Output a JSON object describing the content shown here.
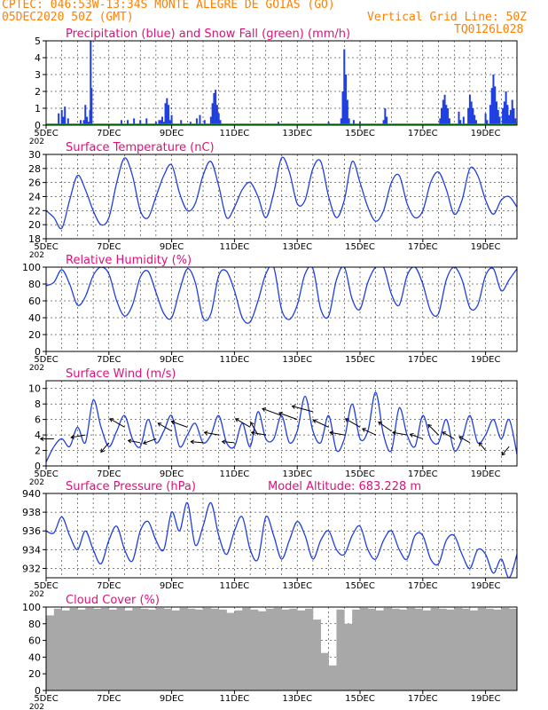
{
  "header": {
    "line1": "CPTEC:  046:53W-13:34S  MONTE ALEGRE DE GOIAS (GO)",
    "line2_left": "05DEC2020 50Z (GMT)",
    "line2_right": "Vertical Grid Line: 50Z",
    "line3_right": "TQ0126L028"
  },
  "colors": {
    "header": "#ff8000",
    "title": "#e0107a",
    "series": "#1f3fe0",
    "snow": "#00b000",
    "cloud": "#a8a8a8",
    "grid": "#000000"
  },
  "x_tick_labels": [
    "5DEC",
    "7DEC",
    "9DEC",
    "11DEC",
    "13DEC",
    "15DEC",
    "17DEC",
    "19DEC"
  ],
  "x_tick_sub": "202",
  "chart_data": [
    {
      "type": "bar",
      "title": "Precipitation (blue) and Snow Fall (green) (mm/h)",
      "ylim": [
        0,
        5
      ],
      "yticks": [
        "0",
        "1",
        "2",
        "3",
        "4",
        "5"
      ],
      "x_days": [
        5,
        20
      ],
      "series": [
        {
          "name": "Precipitation",
          "points": [
            [
              5.4,
              0.7
            ],
            [
              5.5,
              0.9
            ],
            [
              5.55,
              0.5
            ],
            [
              5.6,
              1.1
            ],
            [
              5.7,
              0.4
            ],
            [
              6.1,
              0.3
            ],
            [
              6.2,
              0.3
            ],
            [
              6.25,
              1.2
            ],
            [
              6.3,
              0.5
            ],
            [
              6.35,
              0.2
            ],
            [
              6.4,
              0.9
            ],
            [
              6.42,
              5
            ],
            [
              6.45,
              2.2
            ],
            [
              7.4,
              0.3
            ],
            [
              7.6,
              0.3
            ],
            [
              7.8,
              0.4
            ],
            [
              8.0,
              0.3
            ],
            [
              8.2,
              0.4
            ],
            [
              8.5,
              0.2
            ],
            [
              8.6,
              0.3
            ],
            [
              8.65,
              0.3
            ],
            [
              8.7,
              0.5
            ],
            [
              8.75,
              0.2
            ],
            [
              8.8,
              1.3
            ],
            [
              8.85,
              1.6
            ],
            [
              8.9,
              1.2
            ],
            [
              8.95,
              0.3
            ],
            [
              9.0,
              0.6
            ],
            [
              9.3,
              0.3
            ],
            [
              9.6,
              0.2
            ],
            [
              9.8,
              0.4
            ],
            [
              9.9,
              0.6
            ],
            [
              10.05,
              0.3
            ],
            [
              10.25,
              0.5
            ],
            [
              10.3,
              1.3
            ],
            [
              10.35,
              1.9
            ],
            [
              10.4,
              2.1
            ],
            [
              10.45,
              1.2
            ],
            [
              10.5,
              0.7
            ],
            [
              10.55,
              0.3
            ],
            [
              12.4,
              0.2
            ],
            [
              14.0,
              0.2
            ],
            [
              14.4,
              0.4
            ],
            [
              14.45,
              2.0
            ],
            [
              14.5,
              4.5
            ],
            [
              14.55,
              3.0
            ],
            [
              14.6,
              1.5
            ],
            [
              14.65,
              0.4
            ],
            [
              14.8,
              0.3
            ],
            [
              15.0,
              0.2
            ],
            [
              15.75,
              0.3
            ],
            [
              15.8,
              1.0
            ],
            [
              15.85,
              0.5
            ],
            [
              17.55,
              0.4
            ],
            [
              17.6,
              1.0
            ],
            [
              17.65,
              1.5
            ],
            [
              17.7,
              1.8
            ],
            [
              17.75,
              1.2
            ],
            [
              17.8,
              1.0
            ],
            [
              17.85,
              0.4
            ],
            [
              18.15,
              0.8
            ],
            [
              18.2,
              0.3
            ],
            [
              18.3,
              0.5
            ],
            [
              18.45,
              1.0
            ],
            [
              18.5,
              1.8
            ],
            [
              18.55,
              1.4
            ],
            [
              18.6,
              1.0
            ],
            [
              18.65,
              0.6
            ],
            [
              18.7,
              0.3
            ],
            [
              19.0,
              0.7
            ],
            [
              19.05,
              0.3
            ],
            [
              19.15,
              1.2
            ],
            [
              19.2,
              2.2
            ],
            [
              19.25,
              3.0
            ],
            [
              19.3,
              2.3
            ],
            [
              19.35,
              1.4
            ],
            [
              19.4,
              0.9
            ],
            [
              19.45,
              0.5
            ],
            [
              19.55,
              1.0
            ],
            [
              19.6,
              1.4
            ],
            [
              19.65,
              2.0
            ],
            [
              19.7,
              1.2
            ],
            [
              19.75,
              0.6
            ],
            [
              19.8,
              0.9
            ],
            [
              19.85,
              1.5
            ],
            [
              19.9,
              1.0
            ],
            [
              19.95,
              0.4
            ]
          ]
        },
        {
          "name": "Snow Fall",
          "points": []
        }
      ]
    },
    {
      "type": "line",
      "title": "Surface Temperature (nC)",
      "ylim": [
        18,
        30
      ],
      "yticks": [
        "18",
        "20",
        "22",
        "24",
        "26",
        "28",
        "30"
      ],
      "x": [
        5.0,
        5.25,
        5.5,
        5.75,
        6.0,
        6.25,
        6.5,
        6.75,
        7.0,
        7.25,
        7.5,
        7.75,
        8.0,
        8.25,
        8.5,
        8.75,
        9.0,
        9.25,
        9.5,
        9.75,
        10.0,
        10.25,
        10.5,
        10.75,
        11.0,
        11.25,
        11.5,
        11.75,
        12.0,
        12.25,
        12.5,
        12.75,
        13.0,
        13.25,
        13.5,
        13.75,
        14.0,
        14.25,
        14.5,
        14.75,
        15.0,
        15.25,
        15.5,
        15.75,
        16.0,
        16.25,
        16.5,
        16.75,
        17.0,
        17.25,
        17.5,
        17.75,
        18.0,
        18.25,
        18.5,
        18.75,
        19.0,
        19.25,
        19.5,
        19.75,
        20.0
      ],
      "values": [
        22.0,
        21.0,
        19.5,
        23.5,
        27.0,
        25.0,
        22.0,
        20.0,
        21.0,
        26.0,
        29.5,
        27.0,
        22.0,
        21.0,
        24.0,
        27.0,
        28.5,
        24.5,
        22.0,
        23.0,
        27.0,
        29.0,
        25.5,
        21.0,
        22.5,
        25.0,
        26.0,
        24.0,
        21.0,
        24.5,
        29.5,
        27.5,
        23.0,
        23.5,
        28.0,
        29.0,
        24.0,
        21.0,
        23.5,
        29.0,
        26.0,
        22.5,
        20.5,
        22.0,
        26.0,
        27.0,
        23.0,
        21.0,
        22.0,
        26.0,
        27.5,
        25.0,
        21.5,
        23.5,
        28.0,
        27.0,
        23.5,
        21.5,
        23.5,
        24.0,
        22.5
      ]
    },
    {
      "type": "line",
      "title": "Relative Humidity (%)",
      "ylim": [
        0,
        100
      ],
      "yticks": [
        "0",
        "20",
        "40",
        "60",
        "80",
        "100"
      ],
      "x": [
        5.0,
        5.25,
        5.5,
        5.75,
        6.0,
        6.25,
        6.5,
        6.75,
        7.0,
        7.25,
        7.5,
        7.75,
        8.0,
        8.25,
        8.5,
        8.75,
        9.0,
        9.25,
        9.5,
        9.75,
        10.0,
        10.25,
        10.5,
        10.75,
        11.0,
        11.25,
        11.5,
        11.75,
        12.0,
        12.25,
        12.5,
        12.75,
        13.0,
        13.25,
        13.5,
        13.75,
        14.0,
        14.25,
        14.5,
        14.75,
        15.0,
        15.25,
        15.5,
        15.75,
        16.0,
        16.25,
        16.5,
        16.75,
        17.0,
        17.25,
        17.5,
        17.75,
        18.0,
        18.25,
        18.5,
        18.75,
        19.0,
        19.25,
        19.5,
        19.75,
        20.0
      ],
      "values": [
        78,
        82,
        97,
        80,
        55,
        65,
        90,
        100,
        92,
        60,
        42,
        55,
        88,
        95,
        70,
        45,
        40,
        72,
        98,
        82,
        40,
        45,
        90,
        95,
        72,
        40,
        35,
        60,
        92,
        100,
        50,
        38,
        55,
        92,
        98,
        50,
        42,
        85,
        100,
        62,
        50,
        82,
        100,
        100,
        68,
        55,
        90,
        100,
        80,
        48,
        45,
        85,
        100,
        85,
        52,
        55,
        90,
        98,
        72,
        85,
        98
      ]
    },
    {
      "type": "line",
      "title": "Surface Wind (m/s)",
      "ylim": [
        0,
        11
      ],
      "yticks": [
        "0",
        "2",
        "4",
        "6",
        "8",
        "10"
      ],
      "x": [
        5.0,
        5.25,
        5.5,
        5.75,
        6.0,
        6.25,
        6.5,
        6.75,
        7.0,
        7.25,
        7.5,
        7.75,
        8.0,
        8.25,
        8.5,
        8.75,
        9.0,
        9.25,
        9.5,
        9.75,
        10.0,
        10.25,
        10.5,
        10.75,
        11.0,
        11.25,
        11.5,
        11.75,
        12.0,
        12.25,
        12.5,
        12.75,
        13.0,
        13.25,
        13.5,
        13.75,
        14.0,
        14.25,
        14.5,
        14.75,
        15.0,
        15.25,
        15.5,
        15.75,
        16.0,
        16.25,
        16.5,
        16.75,
        17.0,
        17.25,
        17.5,
        17.75,
        18.0,
        18.25,
        18.5,
        18.75,
        19.0,
        19.25,
        19.5,
        19.75,
        20.0
      ],
      "values": [
        0.5,
        2.5,
        3.5,
        2.5,
        5.0,
        3.0,
        8.5,
        5.0,
        2.5,
        4.5,
        6.5,
        3.5,
        2.5,
        6.0,
        3.0,
        4.5,
        6.5,
        2.5,
        4.0,
        5.5,
        3.0,
        4.0,
        6.5,
        3.0,
        2.5,
        5.5,
        2.5,
        7.0,
        3.5,
        3.5,
        6.5,
        3.0,
        4.5,
        9.0,
        4.5,
        3.0,
        6.5,
        2.0,
        3.5,
        8.0,
        3.5,
        4.5,
        9.5,
        4.0,
        2.0,
        7.5,
        4.0,
        2.5,
        6.5,
        3.5,
        3.0,
        6.0,
        2.0,
        3.5,
        6.5,
        3.0,
        4.0,
        6.0,
        3.5,
        6.0,
        1.5
      ],
      "arrows": [
        {
          "day": 5.25,
          "speed": 3.5,
          "direction_deg": 180
        },
        {
          "day": 6.25,
          "speed": 4.0,
          "direction_deg": 190
        },
        {
          "day": 7.0,
          "speed": 3.0,
          "direction_deg": 230
        },
        {
          "day": 7.5,
          "speed": 5.0,
          "direction_deg": 150
        },
        {
          "day": 8.0,
          "speed": 3.0,
          "direction_deg": 170
        },
        {
          "day": 8.5,
          "speed": 3.5,
          "direction_deg": 200
        },
        {
          "day": 9.0,
          "speed": 4.5,
          "direction_deg": 150
        },
        {
          "day": 9.5,
          "speed": 5.0,
          "direction_deg": 160
        },
        {
          "day": 10.0,
          "speed": 3.0,
          "direction_deg": 175
        },
        {
          "day": 10.5,
          "speed": 4.0,
          "direction_deg": 170
        },
        {
          "day": 11.0,
          "speed": 3.0,
          "direction_deg": 175
        },
        {
          "day": 11.5,
          "speed": 5.0,
          "direction_deg": 150
        },
        {
          "day": 11.75,
          "speed": 4.0,
          "direction_deg": 120
        },
        {
          "day": 12.0,
          "speed": 4.0,
          "direction_deg": 170
        },
        {
          "day": 12.5,
          "speed": 6.5,
          "direction_deg": 160
        },
        {
          "day": 13.0,
          "speed": 6.0,
          "direction_deg": 160
        },
        {
          "day": 13.5,
          "speed": 7.0,
          "direction_deg": 165
        },
        {
          "day": 14.0,
          "speed": 5.0,
          "direction_deg": 155
        },
        {
          "day": 14.5,
          "speed": 4.0,
          "direction_deg": 170
        },
        {
          "day": 15.0,
          "speed": 5.0,
          "direction_deg": 150
        },
        {
          "day": 15.5,
          "speed": 4.0,
          "direction_deg": 155
        },
        {
          "day": 16.0,
          "speed": 4.5,
          "direction_deg": 145
        },
        {
          "day": 16.5,
          "speed": 4.0,
          "direction_deg": 170
        },
        {
          "day": 17.0,
          "speed": 3.5,
          "direction_deg": 160
        },
        {
          "day": 17.5,
          "speed": 4.0,
          "direction_deg": 135
        },
        {
          "day": 18.0,
          "speed": 3.5,
          "direction_deg": 150
        },
        {
          "day": 18.5,
          "speed": 3.0,
          "direction_deg": 150
        },
        {
          "day": 19.0,
          "speed": 2.0,
          "direction_deg": 130
        },
        {
          "day": 19.75,
          "speed": 2.5,
          "direction_deg": 230
        }
      ]
    },
    {
      "type": "line",
      "title": "Surface Pressure (hPa)",
      "subtitle": "Model Altitude: 683.228  m",
      "ylim": [
        931,
        940
      ],
      "yticks": [
        "932",
        "934",
        "936",
        "938",
        "940"
      ],
      "ytick_values": [
        932,
        934,
        936,
        938,
        940
      ],
      "x": [
        5.0,
        5.25,
        5.5,
        5.75,
        6.0,
        6.25,
        6.5,
        6.75,
        7.0,
        7.25,
        7.5,
        7.75,
        8.0,
        8.25,
        8.5,
        8.75,
        9.0,
        9.25,
        9.5,
        9.75,
        10.0,
        10.25,
        10.5,
        10.75,
        11.0,
        11.25,
        11.5,
        11.75,
        12.0,
        12.25,
        12.5,
        12.75,
        13.0,
        13.25,
        13.5,
        13.75,
        14.0,
        14.25,
        14.5,
        14.75,
        15.0,
        15.25,
        15.5,
        15.75,
        16.0,
        16.25,
        16.5,
        16.75,
        17.0,
        17.25,
        17.5,
        17.75,
        18.0,
        18.25,
        18.5,
        18.75,
        19.0,
        19.25,
        19.5,
        19.75,
        20.0
      ],
      "values": [
        936.0,
        935.8,
        937.5,
        935.5,
        934.0,
        936.0,
        934.0,
        932.5,
        935.0,
        936.5,
        934.0,
        932.8,
        936.0,
        937.0,
        935.0,
        934.0,
        938.0,
        936.0,
        939.0,
        934.5,
        936.5,
        939.0,
        935.5,
        933.5,
        936.0,
        937.5,
        934.0,
        933.0,
        937.5,
        935.5,
        933.0,
        935.0,
        937.0,
        935.5,
        933.0,
        935.0,
        936.0,
        934.0,
        933.5,
        935.5,
        936.5,
        934.0,
        933.0,
        935.0,
        936.0,
        934.0,
        933.0,
        935.5,
        935.5,
        933.0,
        932.5,
        935.0,
        935.5,
        933.5,
        932.0,
        934.0,
        933.5,
        931.5,
        933.0,
        931.0,
        933.5
      ]
    },
    {
      "type": "bar",
      "title": "Cloud Cover (%)",
      "ylim": [
        0,
        100
      ],
      "yticks": [
        "0",
        "20",
        "40",
        "60",
        "80",
        "100"
      ],
      "x": [
        5.25,
        5.5,
        5.75,
        6.0,
        6.25,
        6.5,
        6.75,
        7.0,
        7.25,
        7.5,
        7.75,
        8.0,
        8.25,
        8.5,
        8.75,
        9.0,
        9.25,
        9.5,
        9.75,
        10.0,
        10.25,
        10.5,
        10.75,
        11.0,
        11.25,
        11.5,
        11.75,
        12.0,
        12.25,
        12.5,
        12.75,
        13.0,
        13.25,
        13.5,
        13.75,
        14.0,
        14.25,
        14.5,
        14.75,
        15.0,
        15.25,
        15.5,
        15.75,
        16.0,
        16.25,
        16.5,
        16.75,
        17.0,
        17.25,
        17.5,
        17.75,
        18.0,
        18.25,
        18.5,
        18.75,
        19.0,
        19.25,
        19.5,
        19.75,
        20.0
      ],
      "values": [
        90,
        98,
        96,
        99,
        97,
        99,
        98,
        99,
        97,
        99,
        96,
        99,
        98,
        97,
        99,
        98,
        96,
        99,
        98,
        97,
        99,
        98,
        97,
        93,
        96,
        99,
        97,
        95,
        98,
        99,
        97,
        98,
        96,
        98,
        85,
        45,
        30,
        97,
        80,
        97,
        99,
        98,
        96,
        99,
        98,
        97,
        99,
        98,
        96,
        99,
        98,
        97,
        99,
        98,
        96,
        99,
        98,
        97,
        99,
        98
      ]
    }
  ]
}
